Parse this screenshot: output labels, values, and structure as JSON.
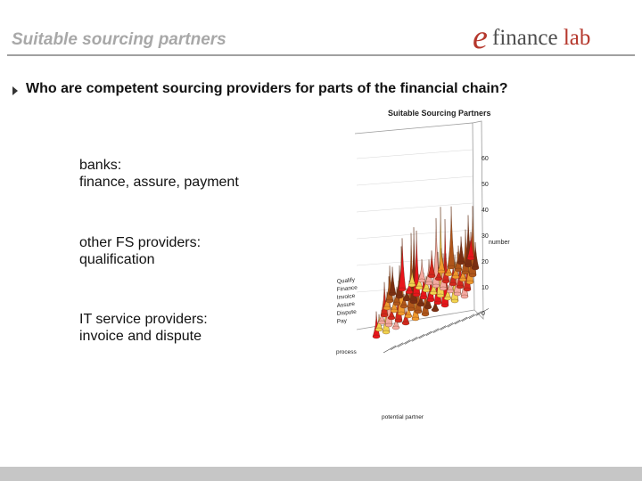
{
  "header": {
    "title": "Suitable sourcing partners",
    "logo": {
      "mark": "e",
      "word": "finance ",
      "word_accent": "lab"
    }
  },
  "main": {
    "question": "Who are competent sourcing providers for parts of the financial chain?",
    "items": [
      {
        "label": "banks:",
        "detail": "finance, assure, payment"
      },
      {
        "label": "other FS providers:",
        "detail": "qualification"
      },
      {
        "label": "IT service providers:",
        "detail": "invoice and dispute"
      }
    ]
  },
  "chart_data": {
    "type": "bar3d",
    "title": "Suitable Sourcing Partners",
    "xlabel": "potential partner",
    "ylabel": "process",
    "zlabel": "number",
    "zlim": [
      0,
      60
    ],
    "z_ticks": [
      "0",
      "10",
      "20",
      "30",
      "40",
      "50",
      "60"
    ],
    "process_labels": [
      "Qualify",
      "Finance",
      "Invoice",
      "Assure",
      "Dispute",
      "Pay"
    ],
    "colors": [
      "#e8151b",
      "#f2d44f",
      "#f4a9a0",
      "#d4271d",
      "#f09a2e",
      "#b0561a",
      "#7a2e12"
    ]
  }
}
